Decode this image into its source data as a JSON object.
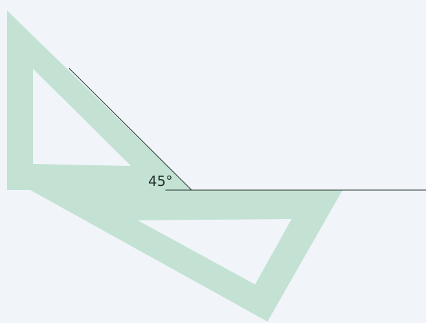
{
  "angle_label": "45°"
}
